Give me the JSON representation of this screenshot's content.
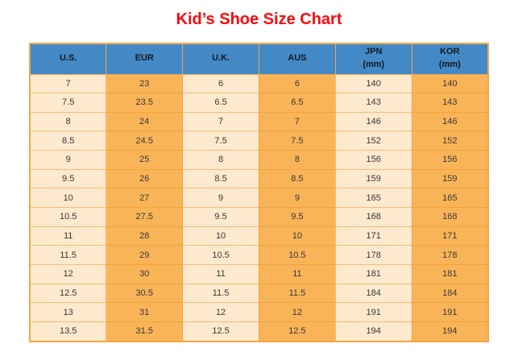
{
  "chart_data": {
    "type": "table",
    "title": "Kid’s Shoe Size Chart",
    "columns": [
      {
        "id": "us",
        "label": "U.S.",
        "sublabel": ""
      },
      {
        "id": "eur",
        "label": "EUR",
        "sublabel": ""
      },
      {
        "id": "uk",
        "label": "U.K.",
        "sublabel": ""
      },
      {
        "id": "aus",
        "label": "AUS",
        "sublabel": ""
      },
      {
        "id": "jpn",
        "label": "JPN",
        "sublabel": "(mm)"
      },
      {
        "id": "kor",
        "label": "KOR",
        "sublabel": "(mm)"
      }
    ],
    "rows": [
      [
        "7",
        "23",
        "6",
        "6",
        "140",
        "140"
      ],
      [
        "7.5",
        "23.5",
        "6.5",
        "6.5",
        "143",
        "143"
      ],
      [
        "8",
        "24",
        "7",
        "7",
        "146",
        "146"
      ],
      [
        "8.5",
        "24.5",
        "7.5",
        "7.5",
        "152",
        "152"
      ],
      [
        "9",
        "25",
        "8",
        "8",
        "156",
        "156"
      ],
      [
        "9.5",
        "26",
        "8.5",
        "8.5",
        "159",
        "159"
      ],
      [
        "10",
        "27",
        "9",
        "9",
        "165",
        "165"
      ],
      [
        "10.5",
        "27.5",
        "9.5",
        "9.5",
        "168",
        "168"
      ],
      [
        "11",
        "28",
        "10",
        "10",
        "171",
        "171"
      ],
      [
        "11.5",
        "29",
        "10.5",
        "10.5",
        "178",
        "178"
      ],
      [
        "12",
        "30",
        "11",
        "11",
        "181",
        "181"
      ],
      [
        "12.5",
        "30.5",
        "11.5",
        "11.5",
        "184",
        "184"
      ],
      [
        "13",
        "31",
        "12",
        "12",
        "191",
        "191"
      ],
      [
        "13.5",
        "31.5",
        "12.5",
        "12.5",
        "194",
        "194"
      ]
    ]
  },
  "colors": {
    "title_color": "#FA0A0C",
    "header_bg": "#4389C6",
    "header_text": "#16181D",
    "cell_cream": "#FCE9CE",
    "cell_orange": "#FAB458",
    "cell_text": "#383838",
    "border_solid": "#F5A644",
    "page_bg": "#FFFFFF"
  }
}
